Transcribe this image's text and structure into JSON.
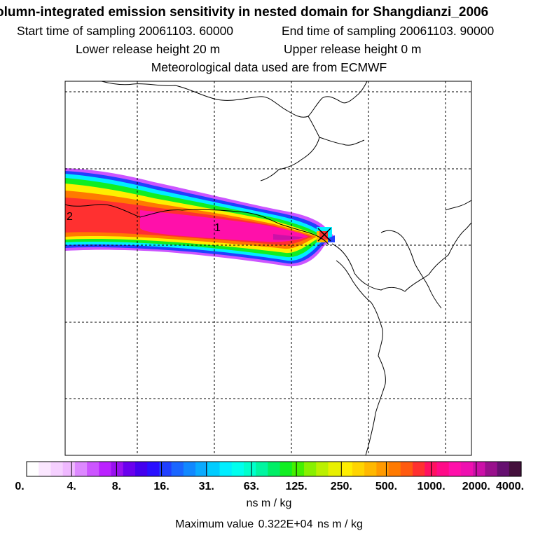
{
  "header": {
    "title": "olumn-integrated emission sensitivity in nested domain for Shangdianzi_2006",
    "start_label": "Start time of sampling 20061103. 60000",
    "end_label": "End time of sampling 20061103. 90000",
    "lower_label": "Lower release height   20 m",
    "upper_label": "Upper release height    0 m",
    "met_label": "Meteorological data used are from ECMWF"
  },
  "map": {
    "contour_labels": [
      "2",
      "1"
    ],
    "marker": "release-site-cross"
  },
  "colorbar": {
    "ticks": [
      "0.",
      "4.",
      "8.",
      "16.",
      "31.",
      "63.",
      "125.",
      "250.",
      "500.",
      "1000.",
      "2000.",
      "4000."
    ],
    "units": "ns m / kg",
    "max_label": "Maximum value",
    "max_value": "0.322E+04",
    "max_units": "ns m / kg",
    "colors": [
      "#ffffff",
      "#fbe7ff",
      "#f5d0ff",
      "#efb8ff",
      "#dd88ff",
      "#cc55ff",
      "#bb22ff",
      "#9910f0",
      "#6a00ee",
      "#4400ee",
      "#2a10ff",
      "#2040ff",
      "#1a66ff",
      "#1188ff",
      "#0aaaff",
      "#00ccff",
      "#00eeff",
      "#00ffee",
      "#00ffcc",
      "#00f5a0",
      "#00ee66",
      "#11ee22",
      "#44f000",
      "#88f000",
      "#bbf000",
      "#e8f000",
      "#ffee00",
      "#ffd400",
      "#ffb800",
      "#ff9a00",
      "#ff7a00",
      "#ff5a10",
      "#ff3030",
      "#ff1060",
      "#ff0a88",
      "#ff10aa",
      "#ee10b0",
      "#cc10a8",
      "#99108c",
      "#661070",
      "#44103c"
    ]
  }
}
